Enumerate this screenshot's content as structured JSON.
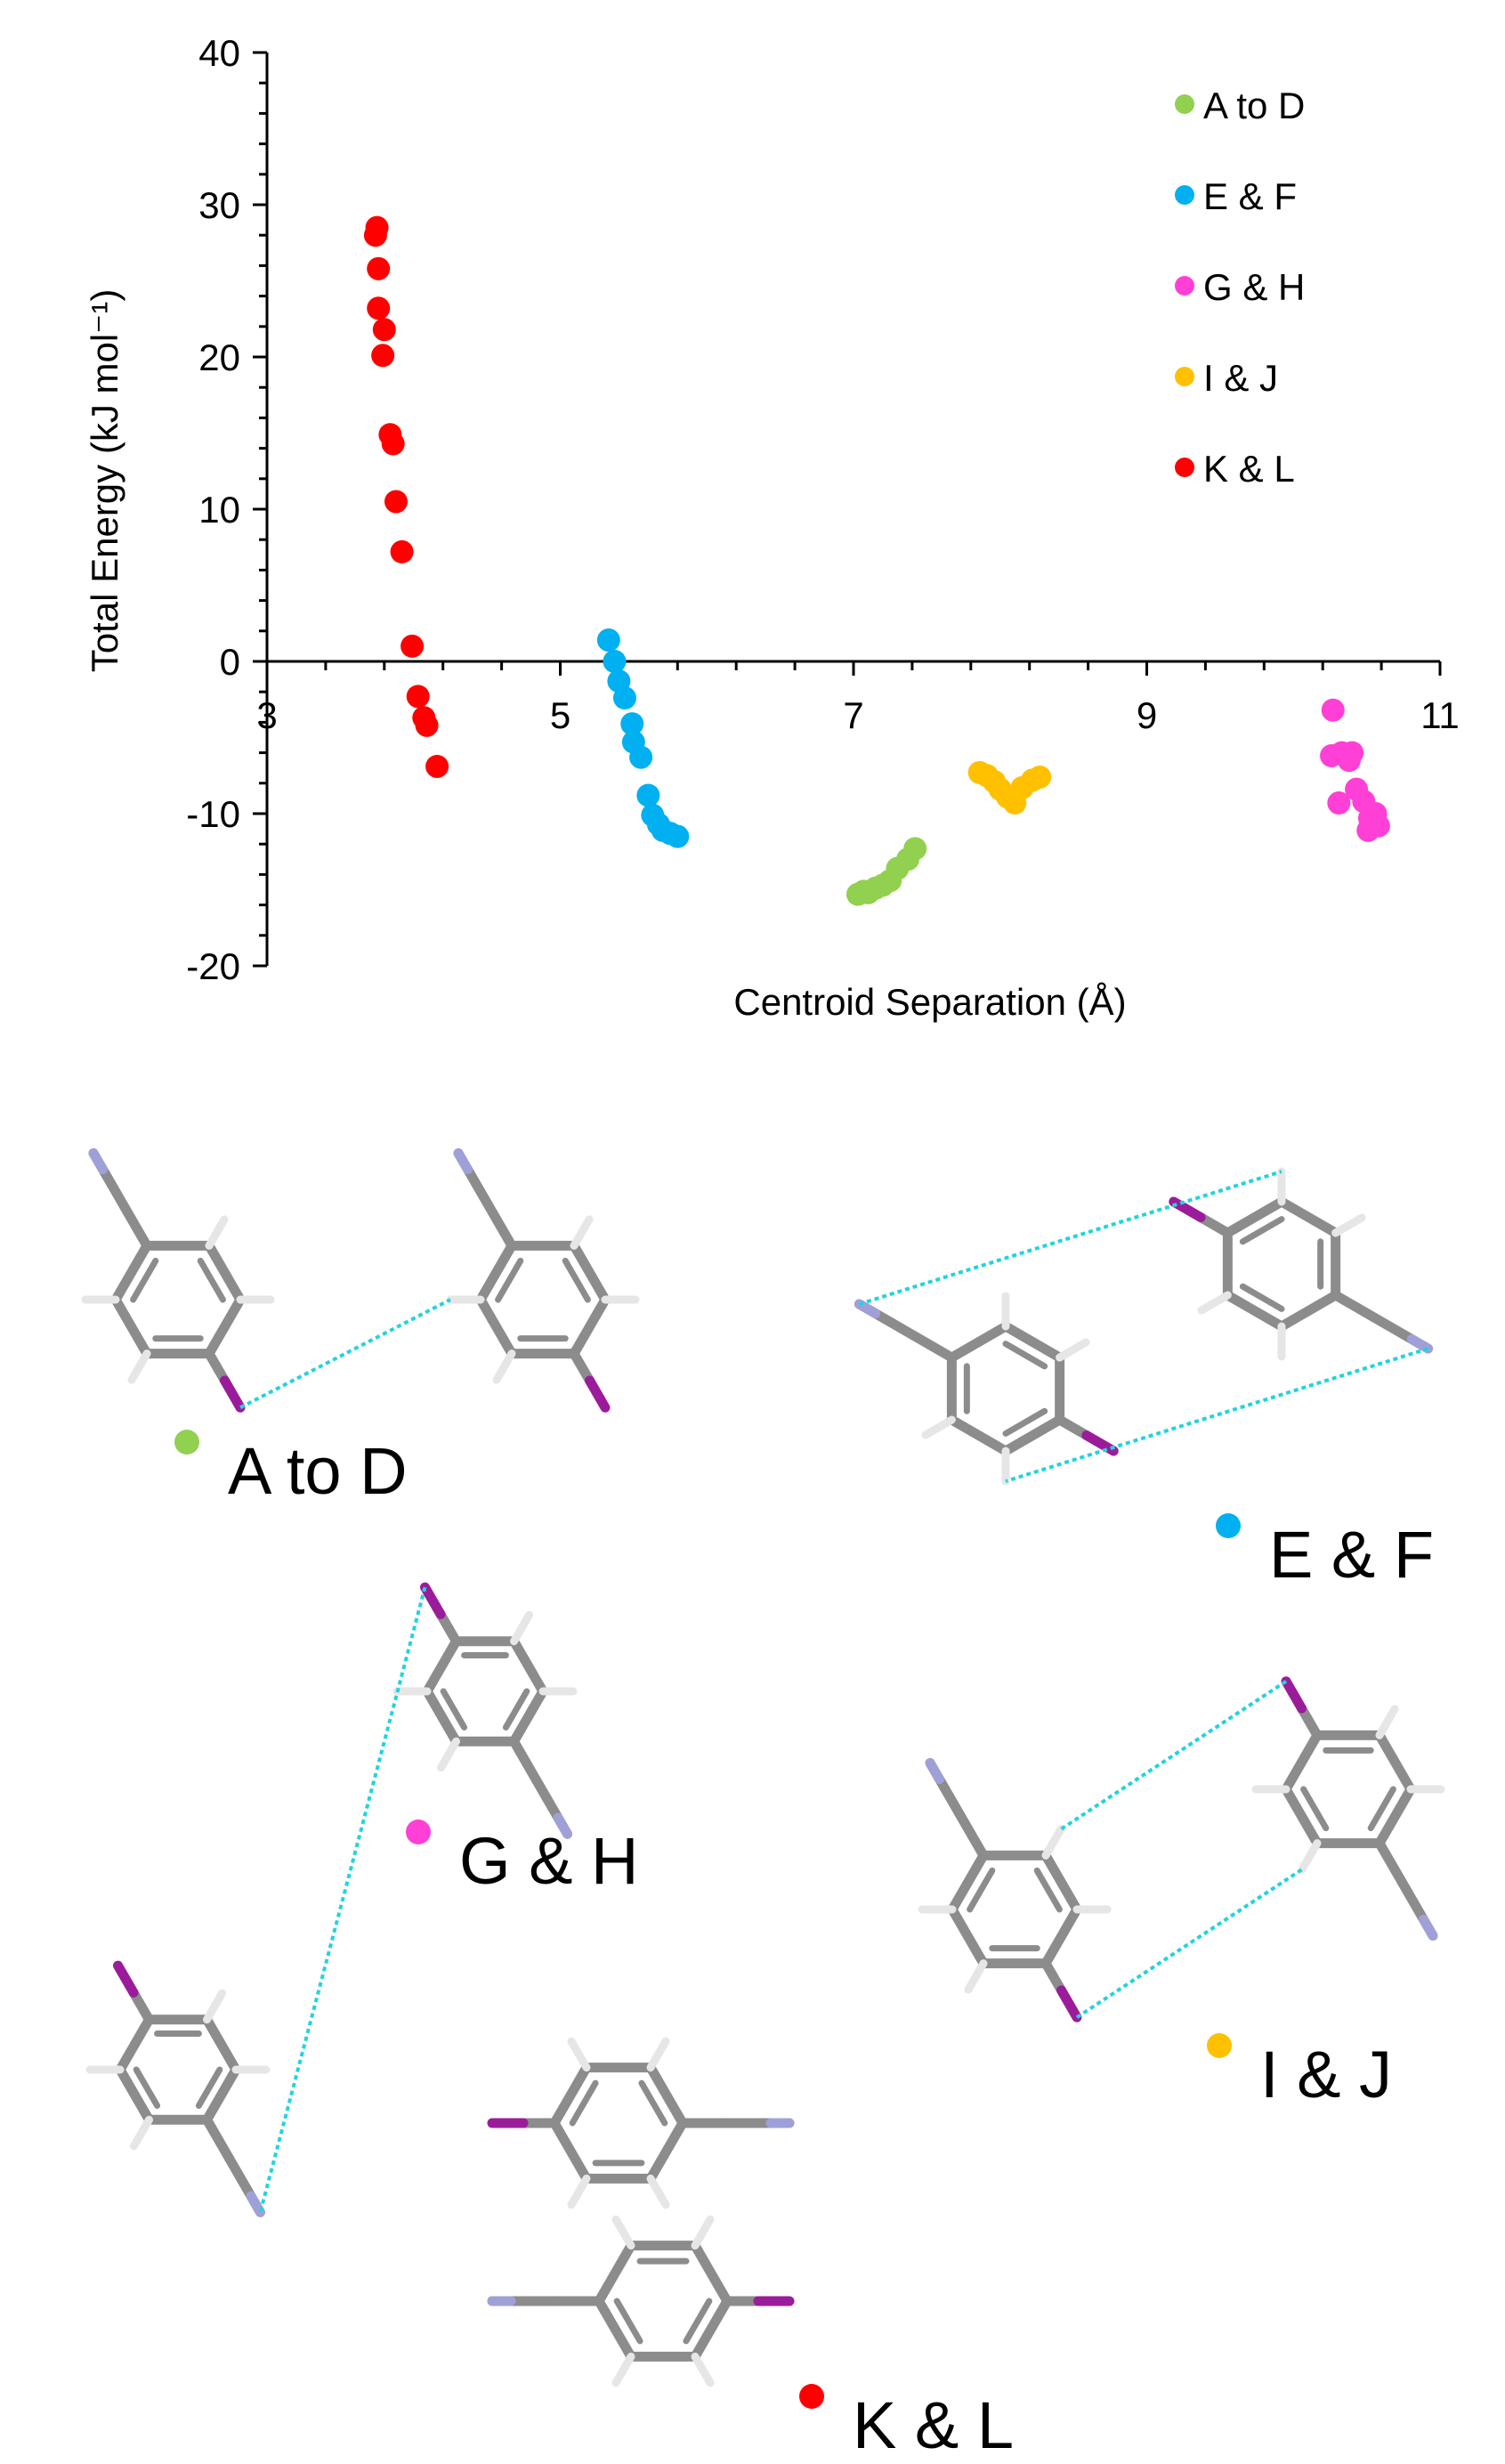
{
  "chart_data": {
    "type": "scatter",
    "title": "",
    "xlabel": "Centroid Separation (Å)",
    "ylabel": "Total Energy (kJ mol⁻¹)",
    "xlim": [
      3,
      11
    ],
    "ylim": [
      -20,
      40
    ],
    "x_ticks": [
      "3",
      "5",
      "7",
      "9",
      "11"
    ],
    "y_ticks": [
      "-20",
      "-10",
      "0",
      "10",
      "20",
      "30",
      "40"
    ],
    "grid": false,
    "legend_position": "top-right",
    "series": [
      {
        "name": "A to D",
        "color": "#92D050",
        "points": [
          [
            7.03,
            -15.3
          ],
          [
            7.07,
            -15.1
          ],
          [
            7.1,
            -15.2
          ],
          [
            7.15,
            -14.9
          ],
          [
            7.2,
            -14.7
          ],
          [
            7.25,
            -14.4
          ],
          [
            7.3,
            -13.6
          ],
          [
            7.37,
            -13.0
          ],
          [
            7.42,
            -12.3
          ]
        ]
      },
      {
        "name": "E & F",
        "color": "#00B0F0",
        "points": [
          [
            5.33,
            1.4
          ],
          [
            5.37,
            0.0
          ],
          [
            5.4,
            -1.3
          ],
          [
            5.44,
            -2.4
          ],
          [
            5.49,
            -4.1
          ],
          [
            5.5,
            -5.3
          ],
          [
            5.55,
            -6.3
          ],
          [
            5.6,
            -8.8
          ],
          [
            5.63,
            -10.1
          ],
          [
            5.67,
            -10.7
          ],
          [
            5.7,
            -11.1
          ],
          [
            5.75,
            -11.3
          ],
          [
            5.8,
            -11.5
          ]
        ]
      },
      {
        "name": "G & H",
        "color": "#FF3FD6",
        "points": [
          [
            10.27,
            -3.2
          ],
          [
            10.26,
            -6.2
          ],
          [
            10.33,
            -6.0
          ],
          [
            10.38,
            -6.5
          ],
          [
            10.4,
            -6.0
          ],
          [
            10.31,
            -9.3
          ],
          [
            10.43,
            -8.4
          ],
          [
            10.48,
            -9.2
          ],
          [
            10.52,
            -10.3
          ],
          [
            10.56,
            -10.0
          ],
          [
            10.58,
            -10.8
          ],
          [
            10.51,
            -11.1
          ]
        ]
      },
      {
        "name": "I & J",
        "color": "#FFC000",
        "points": [
          [
            7.86,
            -7.3
          ],
          [
            7.91,
            -7.5
          ],
          [
            7.96,
            -7.9
          ],
          [
            8.0,
            -8.4
          ],
          [
            8.05,
            -8.9
          ],
          [
            8.1,
            -9.3
          ],
          [
            8.15,
            -8.3
          ],
          [
            8.22,
            -7.8
          ],
          [
            8.27,
            -7.6
          ]
        ]
      },
      {
        "name": "K & L",
        "color": "#FF0000",
        "points": [
          [
            3.75,
            28.5
          ],
          [
            3.74,
            28.0
          ],
          [
            3.76,
            25.8
          ],
          [
            3.76,
            23.2
          ],
          [
            3.8,
            21.8
          ],
          [
            3.79,
            20.1
          ],
          [
            3.84,
            14.9
          ],
          [
            3.86,
            14.3
          ],
          [
            3.88,
            10.5
          ],
          [
            3.92,
            7.2
          ],
          [
            3.99,
            1.0
          ],
          [
            4.03,
            -2.3
          ],
          [
            4.07,
            -3.7
          ],
          [
            4.09,
            -4.2
          ],
          [
            4.16,
            -6.9
          ]
        ]
      }
    ]
  },
  "structures": [
    {
      "caption": "A to D",
      "color": "#92D050"
    },
    {
      "caption": "E & F",
      "color": "#00B0F0"
    },
    {
      "caption": "G & H",
      "color": "#FF3FD6"
    },
    {
      "caption": "I & J",
      "color": "#FFC000"
    },
    {
      "caption": "K & L",
      "color": "#FF0000"
    }
  ],
  "atom_colors": {
    "carbon": "#8C8C8C",
    "hydrogen": "#E6E6E6",
    "iodine": "#9B1C9B",
    "nitrogen": "#A0A0D8",
    "contact": "#22D3DF"
  }
}
